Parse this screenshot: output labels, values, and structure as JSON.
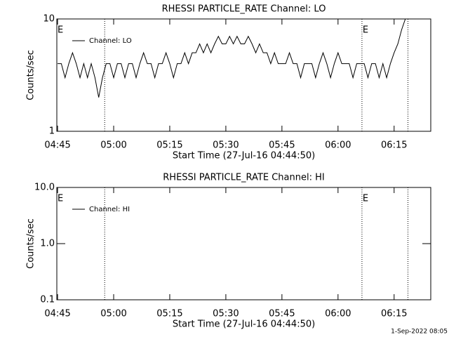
{
  "chart_data": [
    {
      "type": "line",
      "title": "RHESSI PARTICLE_RATE Channel: LO",
      "xlabel": "Start Time (27-Jul-16 04:44:50)",
      "ylabel": "Counts/sec",
      "log_y": true,
      "legend": "upper left",
      "x": [
        285,
        286,
        287,
        288,
        289,
        290,
        291,
        292,
        293,
        294,
        295,
        296,
        297,
        298,
        299,
        300,
        301,
        302,
        303,
        304,
        305,
        306,
        307,
        308,
        309,
        310,
        311,
        312,
        313,
        314,
        315,
        316,
        317,
        318,
        319,
        320,
        321,
        322,
        323,
        324,
        325,
        326,
        327,
        328,
        329,
        330,
        331,
        332,
        333,
        334,
        335,
        336,
        337,
        338,
        339,
        340,
        341,
        342,
        343,
        344,
        345,
        346,
        347,
        348,
        349,
        350,
        351,
        352,
        353,
        354,
        355,
        356,
        357,
        358,
        359,
        360,
        361,
        362,
        363,
        364,
        365,
        366,
        367,
        368,
        369,
        370,
        371,
        372,
        373,
        374,
        375,
        376,
        377,
        378,
        379
      ],
      "series": [
        {
          "name": "Channel: LO",
          "color": "#000000",
          "values": [
            4,
            4,
            3,
            4,
            5,
            4,
            3,
            4,
            3,
            4,
            3,
            2,
            3,
            4,
            4,
            3,
            4,
            4,
            3,
            4,
            4,
            3,
            4,
            5,
            4,
            4,
            3,
            4,
            4,
            5,
            4,
            3,
            4,
            4,
            5,
            4,
            5,
            5,
            6,
            5,
            6,
            5,
            6,
            7,
            6,
            6,
            7,
            6,
            7,
            6,
            6,
            7,
            6,
            5,
            6,
            5,
            5,
            4,
            5,
            4,
            4,
            4,
            5,
            4,
            4,
            3,
            4,
            4,
            4,
            3,
            4,
            5,
            4,
            3,
            4,
            5,
            4,
            4,
            4,
            3,
            4,
            4,
            4,
            3,
            4,
            4,
            3,
            4,
            3,
            4,
            5,
            6,
            8,
            10,
            10
          ]
        }
      ],
      "xlim": [
        284.8,
        384.8
      ],
      "xticks": [
        {
          "value": 285,
          "label": "04:45"
        },
        {
          "value": 300,
          "label": "05:00"
        },
        {
          "value": 315,
          "label": "05:15"
        },
        {
          "value": 330,
          "label": "05:30"
        },
        {
          "value": 345,
          "label": "05:45"
        },
        {
          "value": 360,
          "label": "06:00"
        },
        {
          "value": 375,
          "label": "06:15"
        }
      ],
      "ylim": [
        1,
        10
      ],
      "yticks": [
        1,
        10
      ],
      "markers": [
        297.6,
        366.4,
        378.7
      ],
      "annotations": [
        {
          "text": "E",
          "x": 284.8
        },
        {
          "text": "E",
          "x": 366.4
        }
      ]
    },
    {
      "type": "line",
      "title": "RHESSI PARTICLE_RATE Channel: HI",
      "xlabel": "Start Time (27-Jul-16 04:44:50)",
      "ylabel": "Counts/sec",
      "log_y": true,
      "legend": "upper left",
      "x": [],
      "series": [
        {
          "name": "Channel: HI",
          "color": "#000000",
          "values": []
        }
      ],
      "xlim": [
        284.8,
        384.8
      ],
      "xticks": [
        {
          "value": 285,
          "label": "04:45"
        },
        {
          "value": 300,
          "label": "05:00"
        },
        {
          "value": 315,
          "label": "05:15"
        },
        {
          "value": 330,
          "label": "05:30"
        },
        {
          "value": 345,
          "label": "05:45"
        },
        {
          "value": 360,
          "label": "06:00"
        },
        {
          "value": 375,
          "label": "06:15"
        }
      ],
      "ylim": [
        0.1,
        10
      ],
      "yticks": [
        0.1,
        {
          "value": 1,
          "label": "1.0"
        },
        {
          "value": 10,
          "label": "10.0"
        }
      ],
      "markers": [
        297.6,
        366.4,
        378.7
      ],
      "annotations": [
        {
          "text": "E",
          "x": 284.8
        },
        {
          "text": "E",
          "x": 366.4
        }
      ]
    }
  ],
  "footer": "1-Sep-2022 08:05"
}
